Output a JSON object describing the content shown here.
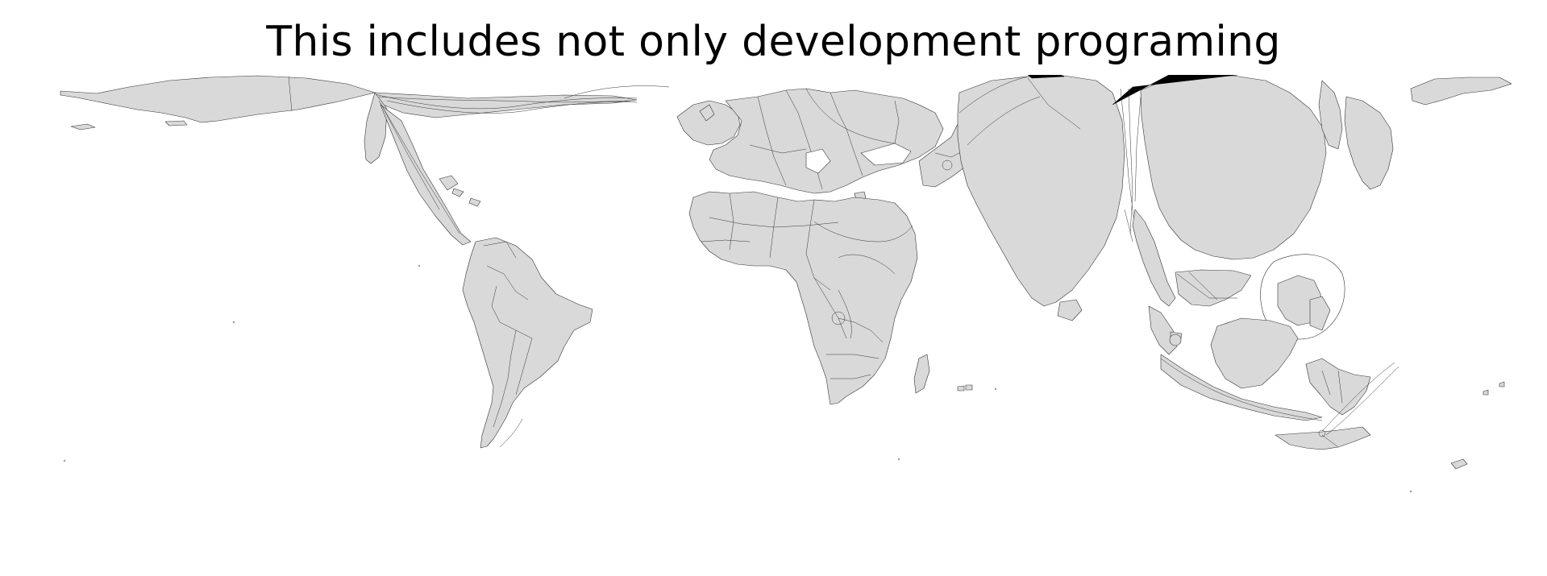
{
  "title": "This includes not only development programing",
  "map": {
    "type": "cartogram",
    "projection": "plate-carree",
    "colors": {
      "land": "#d9d9d9",
      "border": "#333333",
      "highlight": "#000000",
      "background": "#ffffff"
    }
  }
}
